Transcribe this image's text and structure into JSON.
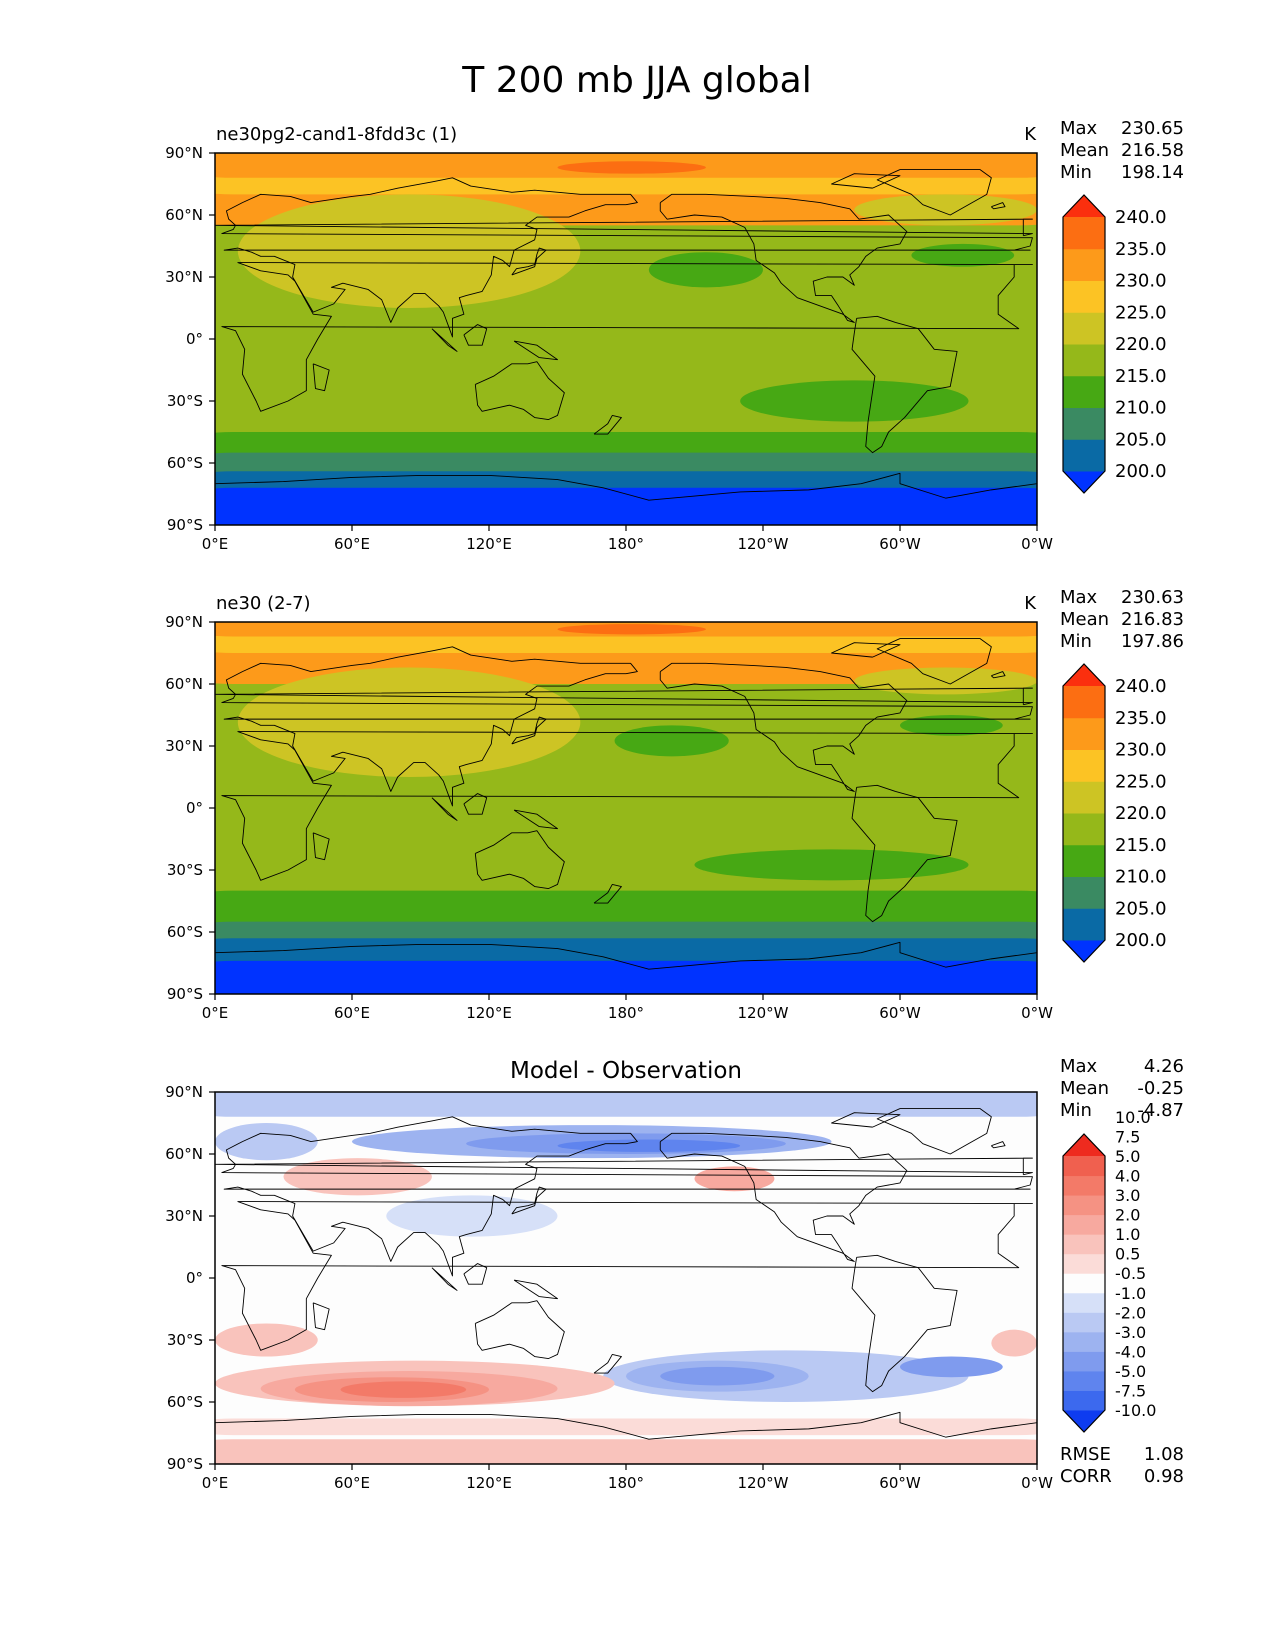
{
  "figure_title": "T 200 mb JJA global",
  "colors": {
    "abs_levels": [
      "#0033ff",
      "#0a6aa5",
      "#3a8a62",
      "#47a814",
      "#95b81a",
      "#cdc424",
      "#fcc324",
      "#fd9a1a",
      "#fc6e12",
      "#fb2f0e"
    ],
    "diff_levels": [
      "#0e3cf0",
      "#3c69ee",
      "#5f84ee",
      "#7f9bee",
      "#9db3f0",
      "#bac9f3",
      "#d6e0f8",
      "#fdfdfd",
      "#fbdcd8",
      "#f9c3bc",
      "#f7a99f",
      "#f59283",
      "#f37a68",
      "#f0604f",
      "#ee2b1f"
    ]
  },
  "chart_data": [
    {
      "type": "heatmap",
      "id": "test",
      "title_left": "ne30pg2-cand1-8fdd3c (1)",
      "units": "K",
      "stats": [
        {
          "label": "Max",
          "value": "230.65"
        },
        {
          "label": "Mean",
          "value": "216.58"
        },
        {
          "label": "Min",
          "value": "198.14"
        }
      ],
      "colorbar_ticks": [
        "200.0",
        "205.0",
        "210.0",
        "215.0",
        "220.0",
        "225.0",
        "230.0",
        "235.0",
        "240.0"
      ],
      "xticks": [
        "0°E",
        "60°E",
        "120°E",
        "180°",
        "120°W",
        "60°W",
        "0°W"
      ],
      "yticks": [
        "90°S",
        "60°S",
        "30°S",
        "0°",
        "30°N",
        "60°N",
        "90°N"
      ],
      "xlim": [
        0,
        360
      ],
      "ylim": [
        -90,
        90
      ],
      "background_level": 4,
      "fields": [
        {
          "level": 7,
          "region": [
            0,
            360,
            55,
            90
          ]
        },
        {
          "level": 6,
          "region": [
            0,
            360,
            70,
            90
          ]
        },
        {
          "level": 7,
          "region": [
            0,
            360,
            78,
            90
          ]
        },
        {
          "level": 8,
          "region": [
            150,
            215,
            80,
            86
          ]
        },
        {
          "level": 5,
          "region": [
            10,
            160,
            15,
            70
          ]
        },
        {
          "level": 5,
          "region": [
            280,
            360,
            55,
            70
          ]
        },
        {
          "level": 3,
          "region": [
            190,
            240,
            25,
            42
          ]
        },
        {
          "level": 3,
          "region": [
            305,
            350,
            35,
            46
          ]
        },
        {
          "level": 3,
          "region": [
            0,
            360,
            -58,
            -45
          ]
        },
        {
          "level": 3,
          "region": [
            230,
            330,
            -40,
            -20
          ]
        },
        {
          "level": 2,
          "region": [
            0,
            360,
            -68,
            -55
          ]
        },
        {
          "level": 1,
          "region": [
            0,
            360,
            -78,
            -64
          ]
        },
        {
          "level": 0,
          "region": [
            0,
            360,
            -90,
            -72
          ]
        }
      ]
    },
    {
      "type": "heatmap",
      "id": "reference",
      "title_left": "ne30 (2-7)",
      "units": "K",
      "stats": [
        {
          "label": "Max",
          "value": "230.63"
        },
        {
          "label": "Mean",
          "value": "216.83"
        },
        {
          "label": "Min",
          "value": "197.86"
        }
      ],
      "colorbar_ticks": [
        "200.0",
        "205.0",
        "210.0",
        "215.0",
        "220.0",
        "225.0",
        "230.0",
        "235.0",
        "240.0"
      ],
      "xticks": [
        "0°E",
        "60°E",
        "120°E",
        "180°",
        "120°W",
        "60°W",
        "0°W"
      ],
      "yticks": [
        "90°S",
        "60°S",
        "30°S",
        "0°",
        "30°N",
        "60°N",
        "90°N"
      ],
      "xlim": [
        0,
        360
      ],
      "ylim": [
        -90,
        90
      ],
      "background_level": 4,
      "fields": [
        {
          "level": 7,
          "region": [
            0,
            360,
            60,
            90
          ]
        },
        {
          "level": 6,
          "region": [
            0,
            360,
            75,
            90
          ]
        },
        {
          "level": 7,
          "region": [
            0,
            360,
            83,
            90
          ]
        },
        {
          "level": 8,
          "region": [
            150,
            215,
            84,
            89
          ]
        },
        {
          "level": 5,
          "region": [
            10,
            160,
            15,
            68
          ]
        },
        {
          "level": 5,
          "region": [
            280,
            360,
            55,
            68
          ]
        },
        {
          "level": 3,
          "region": [
            175,
            225,
            25,
            40
          ]
        },
        {
          "level": 3,
          "region": [
            300,
            345,
            35,
            45
          ]
        },
        {
          "level": 3,
          "region": [
            0,
            360,
            -58,
            -40
          ]
        },
        {
          "level": 3,
          "region": [
            210,
            330,
            -35,
            -20
          ]
        },
        {
          "level": 2,
          "region": [
            0,
            360,
            -65,
            -55
          ]
        },
        {
          "level": 1,
          "region": [
            0,
            360,
            -75,
            -63
          ]
        },
        {
          "level": 0,
          "region": [
            0,
            360,
            -90,
            -74
          ]
        }
      ]
    },
    {
      "type": "heatmap",
      "id": "difference",
      "title_center": "Model - Observation",
      "stats": [
        {
          "label": "Max",
          "value": "4.26"
        },
        {
          "label": "Mean",
          "value": "-0.25"
        },
        {
          "label": "Min",
          "value": "-4.87"
        }
      ],
      "colorbar_ticks": [
        "-10.0",
        "-7.5",
        "-5.0",
        "-4.0",
        "-3.0",
        "-2.0",
        "-1.0",
        "-0.5",
        "0.5",
        "1.0",
        "2.0",
        "3.0",
        "4.0",
        "5.0",
        "7.5",
        "10.0"
      ],
      "xticks": [
        "0°E",
        "60°E",
        "120°E",
        "180°",
        "120°W",
        "60°W",
        "0°W"
      ],
      "yticks": [
        "90°S",
        "60°S",
        "30°S",
        "0°",
        "30°N",
        "60°N",
        "90°N"
      ],
      "xlim": [
        0,
        360
      ],
      "ylim": [
        -90,
        90
      ],
      "background_level": 7,
      "fields": [
        {
          "level": 5,
          "region": [
            0,
            360,
            78,
            90
          ]
        },
        {
          "level": 4,
          "region": [
            60,
            270,
            58,
            74
          ]
        },
        {
          "level": 3,
          "region": [
            110,
            250,
            60,
            70
          ]
        },
        {
          "level": 2,
          "region": [
            150,
            230,
            61,
            67
          ]
        },
        {
          "level": 5,
          "region": [
            0,
            45,
            57,
            75
          ]
        },
        {
          "level": 9,
          "region": [
            30,
            95,
            40,
            58
          ]
        },
        {
          "level": 10,
          "region": [
            210,
            245,
            42,
            54
          ]
        },
        {
          "level": 6,
          "region": [
            75,
            150,
            20,
            40
          ]
        },
        {
          "level": 5,
          "region": [
            170,
            330,
            -60,
            -35
          ]
        },
        {
          "level": 4,
          "region": [
            180,
            260,
            -55,
            -40
          ]
        },
        {
          "level": 3,
          "region": [
            195,
            245,
            -52,
            -43
          ]
        },
        {
          "level": 3,
          "region": [
            300,
            345,
            -48,
            -38
          ]
        },
        {
          "level": 9,
          "region": [
            0,
            175,
            -62,
            -40
          ]
        },
        {
          "level": 10,
          "region": [
            20,
            150,
            -62,
            -45
          ]
        },
        {
          "level": 11,
          "region": [
            35,
            120,
            -60,
            -48
          ]
        },
        {
          "level": 12,
          "region": [
            55,
            110,
            -58,
            -50
          ]
        },
        {
          "level": 9,
          "region": [
            0,
            45,
            -38,
            -22
          ]
        },
        {
          "level": 9,
          "region": [
            340,
            360,
            -38,
            -25
          ]
        },
        {
          "level": 9,
          "region": [
            0,
            360,
            -90,
            -78
          ]
        },
        {
          "level": 8,
          "region": [
            0,
            360,
            -76,
            -68
          ]
        }
      ],
      "rmse": {
        "label": "RMSE",
        "value": "1.08"
      },
      "corr": {
        "label": "CORR",
        "value": "0.98"
      }
    }
  ]
}
